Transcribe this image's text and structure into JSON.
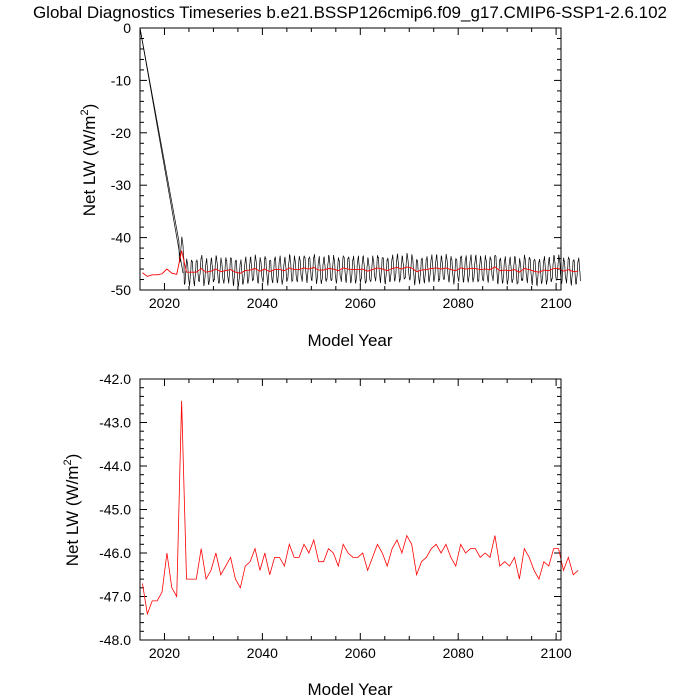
{
  "page_title": "Global Diagnostics Timeseries b.e21.BSSP126cmip6.f09_g17.CMIP6-SSP1-2.6.102",
  "chart_data": [
    {
      "type": "line",
      "xlabel": "Model Year",
      "ylabel": "Net LW (W/m2)",
      "ylabel_main": "Net LW (W/m",
      "ylabel_sup": "2",
      "ylabel_end": ")",
      "xlim": [
        2015,
        2101
      ],
      "ylim": [
        -50,
        0
      ],
      "xticks": [
        2020,
        2040,
        2060,
        2080,
        2100
      ],
      "yticks": [
        0,
        -10,
        -20,
        -30,
        -40,
        -50
      ],
      "yticklabels": [
        "0",
        "-10",
        "-20",
        "-30",
        "-40",
        "-50"
      ],
      "series": [
        {
          "color": "#000000",
          "description": "monthly values, seasonal cycle ~ -48.5 to -43.5 with initial spin-up from 0",
          "monthly": true,
          "spinup": {
            "start_x": 2015.0,
            "start_y": 0,
            "end_x": 2023.4,
            "end_y": -43.0
          },
          "annual_amplitude": 2.4
        },
        {
          "color": "#ff0000",
          "description": "annual mean (same as lower panel)",
          "use_annual": true
        }
      ]
    },
    {
      "type": "line",
      "xlabel": "Model Year",
      "ylabel": "Net LW (W/m2)",
      "ylabel_main": "Net LW (W/m",
      "ylabel_sup": "2",
      "ylabel_end": ")",
      "xlim": [
        2015,
        2101
      ],
      "ylim": [
        -48,
        -42
      ],
      "xticks": [
        2020,
        2040,
        2060,
        2080,
        2100
      ],
      "yticks": [
        -42,
        -43,
        -44,
        -45,
        -46,
        -47,
        -48
      ],
      "yticklabels": [
        "-42.0",
        "-43.0",
        "-44.0",
        "-45.0",
        "-46.0",
        "-47.0",
        "-48.0"
      ],
      "series": [
        {
          "color": "#ff0000",
          "x_start": 2015.5,
          "values": [
            -46.7,
            -47.4,
            -47.1,
            -47.1,
            -46.9,
            -46.0,
            -46.8,
            -47.0,
            -42.5,
            -46.6,
            -46.6,
            -46.6,
            -45.9,
            -46.6,
            -46.4,
            -46.0,
            -46.5,
            -46.3,
            -46.1,
            -46.6,
            -46.8,
            -46.3,
            -46.2,
            -45.9,
            -46.4,
            -46.0,
            -46.5,
            -46.1,
            -46.1,
            -46.3,
            -45.8,
            -46.1,
            -46.1,
            -45.8,
            -46.0,
            -45.7,
            -46.2,
            -46.2,
            -45.9,
            -46.0,
            -46.3,
            -45.8,
            -46.0,
            -46.1,
            -46.1,
            -46.0,
            -46.4,
            -46.1,
            -45.8,
            -46.0,
            -46.3,
            -45.9,
            -45.7,
            -46.0,
            -45.6,
            -45.8,
            -46.5,
            -46.2,
            -46.1,
            -45.9,
            -45.8,
            -46.0,
            -45.8,
            -46.1,
            -46.3,
            -45.8,
            -46.0,
            -45.9,
            -45.9,
            -46.1,
            -46.0,
            -46.1,
            -45.6,
            -46.3,
            -46.2,
            -46.3,
            -46.1,
            -46.6,
            -45.9,
            -46.1,
            -46.4,
            -46.6,
            -46.2,
            -46.3,
            -45.9,
            -45.9,
            -46.4,
            -46.1,
            -46.5,
            -46.4
          ]
        }
      ]
    }
  ]
}
